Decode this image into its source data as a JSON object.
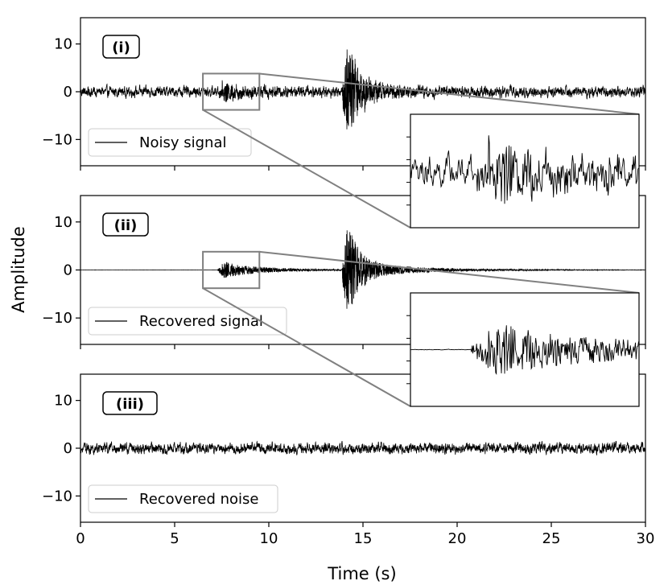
{
  "chart_data": {
    "type": "line",
    "figure": {
      "xlabel": "Time (s)",
      "ylabel": "Amplitude",
      "xlim": [
        0,
        30
      ],
      "ylim": [
        -15.5,
        15.5
      ],
      "xticks": [
        0,
        5,
        10,
        15,
        20,
        25,
        30
      ],
      "yticks": [
        10,
        0,
        -10
      ],
      "zoom_window": {
        "x": [
          6.5,
          9.5
        ],
        "y": [
          -3.8,
          3.8
        ]
      }
    },
    "panels": [
      {
        "tag": "(i)",
        "legend": "Noisy signal",
        "legend_position": "lower left",
        "series": {
          "name": "Noisy signal",
          "color": "#000000",
          "noise_amplitude": 1.1,
          "events": [
            {
              "onset_s": 7.3,
              "peak_amplitude": 2.0,
              "decay_s": 1.6
            },
            {
              "onset_s": 13.9,
              "peak_amplitude": 15.5,
              "decay_s": 0.6
            }
          ]
        },
        "inset": "zoom of noisy signal, 6.5–9.5 s"
      },
      {
        "tag": "(ii)",
        "legend": "Recovered signal",
        "legend_position": "lower left",
        "series": {
          "name": "Recovered signal",
          "color": "#000000",
          "noise_amplitude": 0.02,
          "events": [
            {
              "onset_s": 7.3,
              "peak_amplitude": 2.0,
              "decay_s": 1.6
            },
            {
              "onset_s": 13.9,
              "peak_amplitude": 15.5,
              "decay_s": 0.6
            }
          ]
        },
        "inset": "zoom of recovered signal, 6.5–9.5 s"
      },
      {
        "tag": "(iii)",
        "legend": "Recovered noise",
        "legend_position": "lower left",
        "series": {
          "name": "Recovered noise",
          "color": "#000000",
          "noise_amplitude": 1.1,
          "events": []
        }
      }
    ]
  }
}
